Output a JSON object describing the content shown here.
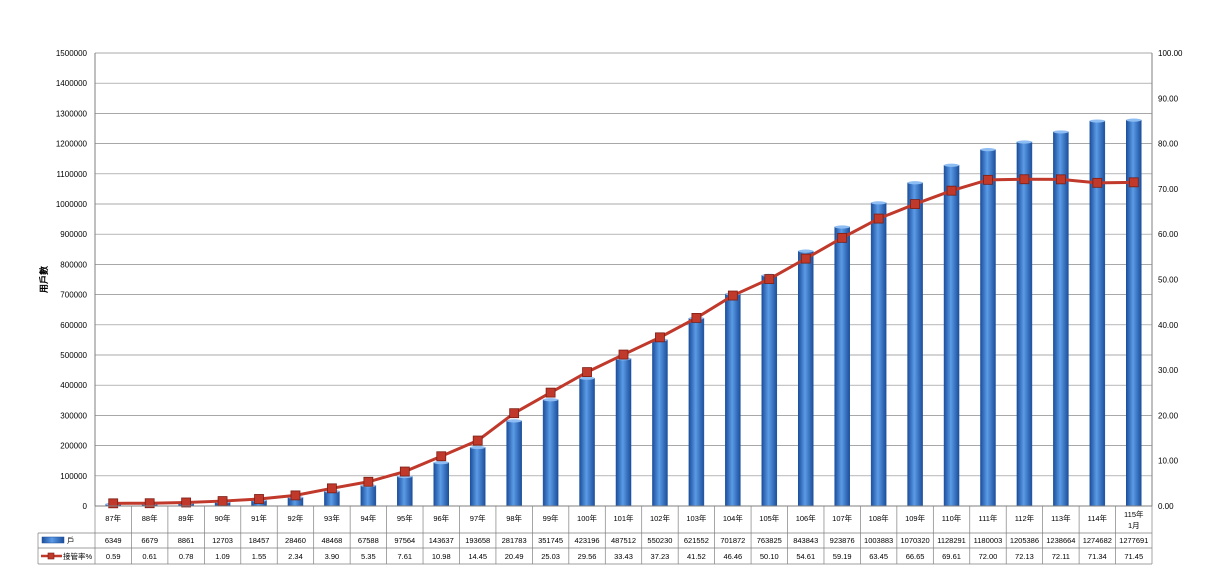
{
  "chart_data": {
    "type": "bar",
    "ylabel": "用戶數",
    "ylim": [
      0,
      1500000
    ],
    "y2lim": [
      0,
      100
    ],
    "y_ticks": [
      "0",
      "100000",
      "200000",
      "300000",
      "400000",
      "500000",
      "600000",
      "700000",
      "800000",
      "900000",
      "1000000",
      "1100000",
      "1200000",
      "1300000",
      "1400000",
      "1500000"
    ],
    "y2_ticks": [
      "0.00",
      "10.00",
      "20.00",
      "30.00",
      "40.00",
      "50.00",
      "60.00",
      "70.00",
      "80.00",
      "90.00",
      "100.00"
    ],
    "grid": true,
    "legend_placement": "data-table-left",
    "categories": [
      "87年",
      "88年",
      "89年",
      "90年",
      "91年",
      "92年",
      "93年",
      "94年",
      "95年",
      "96年",
      "97年",
      "98年",
      "99年",
      "100年",
      "101年",
      "102年",
      "103年",
      "104年",
      "105年",
      "106年",
      "107年",
      "108年",
      "109年",
      "110年",
      "111年",
      "112年",
      "113年",
      "114年",
      "115年 1月"
    ],
    "series": [
      {
        "name": "戶",
        "type": "bar",
        "axis": "left",
        "color": "#3a78c8",
        "values": [
          6349,
          6679,
          8861,
          12703,
          18457,
          28460,
          48468,
          67588,
          97564,
          143637,
          193658,
          281783,
          351745,
          423196,
          487512,
          550230,
          621552,
          701872,
          763825,
          843843,
          923876,
          1003883,
          1070320,
          1128291,
          1180003,
          1205386,
          1238664,
          1274682,
          1277691
        ],
        "labels": [
          "6349",
          "6679",
          "8861",
          "12703",
          "18457",
          "28460",
          "48468",
          "67588",
          "97564",
          "143637",
          "193658",
          "281783",
          "351745",
          "423196",
          "487512",
          "550230",
          "621552",
          "701872",
          "763825",
          "843843",
          "923876",
          "1003883",
          "1070320",
          "1128291",
          "1180003",
          "1205386",
          "1238664",
          "1274682",
          "1277691"
        ]
      },
      {
        "name": "接管率%",
        "type": "line",
        "axis": "right",
        "color": "#c0392b",
        "values": [
          0.59,
          0.61,
          0.78,
          1.09,
          1.55,
          2.34,
          3.9,
          5.35,
          7.61,
          10.98,
          14.45,
          20.49,
          25.03,
          29.56,
          33.43,
          37.23,
          41.52,
          46.46,
          50.1,
          54.61,
          59.19,
          63.45,
          66.65,
          69.61,
          72.0,
          72.13,
          72.11,
          71.34,
          71.45
        ],
        "labels": [
          "0.59",
          "0.61",
          "0.78",
          "1.09",
          "1.55",
          "2.34",
          "3.90",
          "5.35",
          "7.61",
          "10.98",
          "14.45",
          "20.49",
          "25.03",
          "29.56",
          "33.43",
          "37.23",
          "41.52",
          "46.46",
          "50.10",
          "54.61",
          "59.19",
          "63.45",
          "66.65",
          "69.61",
          "72.00",
          "72.13",
          "72.11",
          "71.34",
          "71.45"
        ]
      }
    ]
  }
}
